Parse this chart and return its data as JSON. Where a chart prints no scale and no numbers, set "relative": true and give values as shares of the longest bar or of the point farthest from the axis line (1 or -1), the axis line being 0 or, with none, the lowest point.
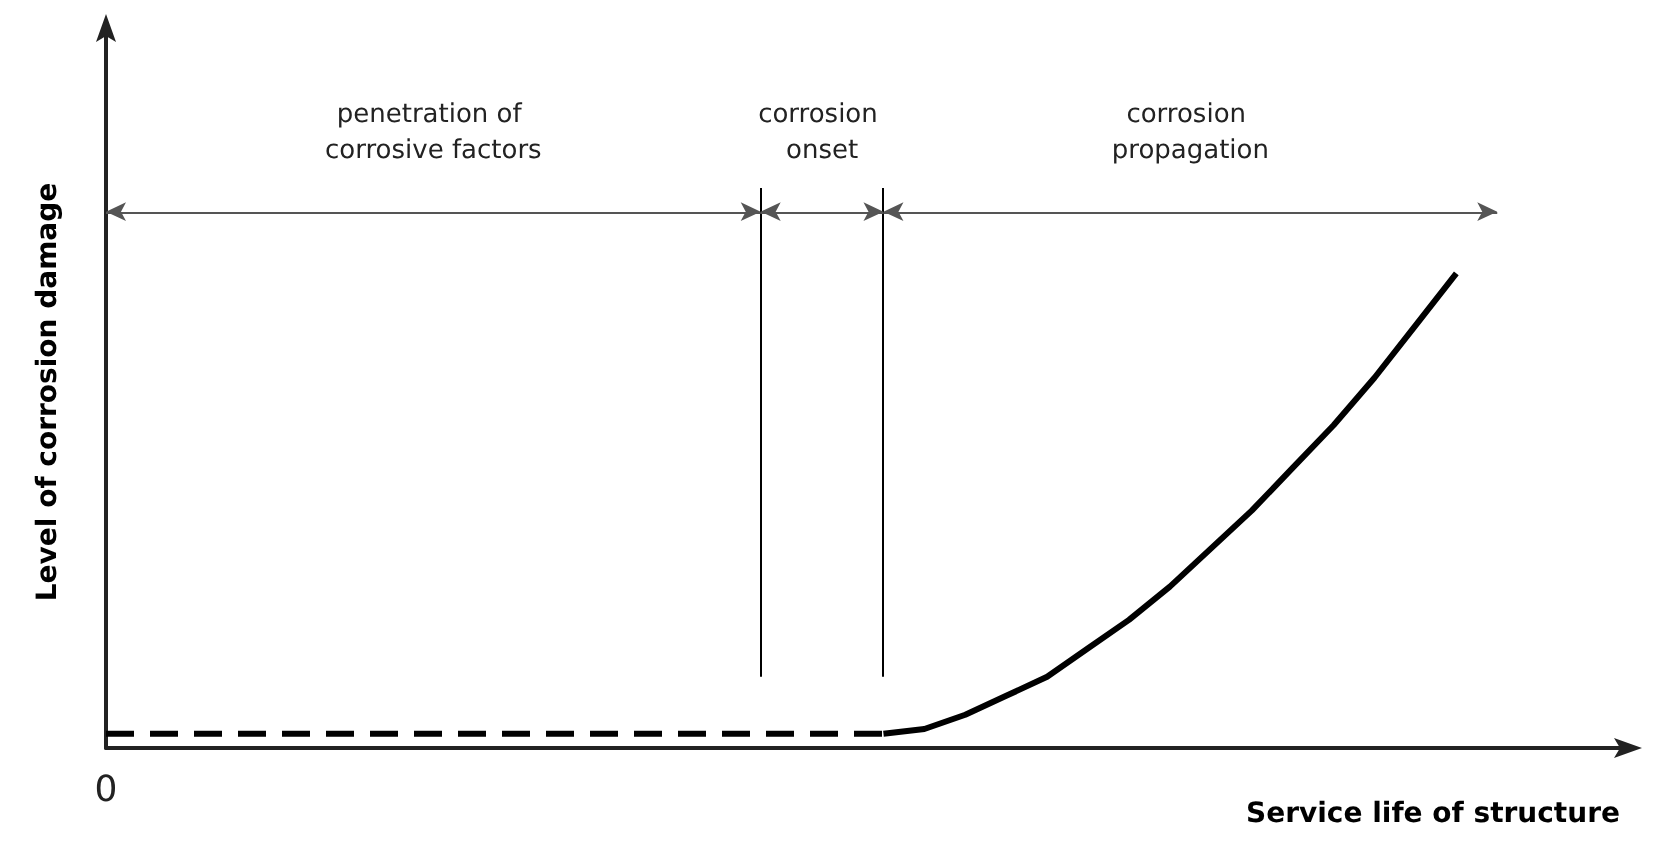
{
  "chart_data": {
    "type": "line",
    "relative": true,
    "xlabel": "Service life of structure",
    "ylabel": "Level of corrosion damage",
    "grid": false,
    "marker": "none",
    "categories": [
      null,
      null,
      null,
      null,
      null,
      null,
      null,
      null,
      null,
      null,
      null,
      null,
      null,
      null,
      null,
      null,
      null,
      null,
      null,
      null,
      null,
      null,
      null,
      null,
      null,
      null,
      null,
      null,
      null,
      null,
      null,
      null,
      null,
      null,
      null,
      null,
      null,
      null
    ],
    "series": [
      {
        "color": "#000000",
        "line_style": "dashed",
        "values": [
          0.03,
          0.03,
          0.03,
          0.03,
          0.03,
          0.03,
          0.03,
          0.03,
          0.03,
          0.03,
          0.03,
          0.03,
          0.03,
          0.03,
          0.03,
          0.03,
          0.03,
          0.03,
          0.03,
          0.03,
          null,
          null,
          null,
          null,
          null,
          null,
          null,
          null,
          null,
          null,
          null,
          null,
          null,
          null,
          null,
          null,
          null,
          null
        ]
      },
      {
        "color": "#000000",
        "line_style": "solid",
        "values": [
          null,
          null,
          null,
          null,
          null,
          null,
          null,
          null,
          null,
          null,
          null,
          null,
          null,
          null,
          null,
          null,
          null,
          null,
          null,
          0.03,
          0.04,
          0.07,
          0.11,
          0.15,
          0.21,
          0.27,
          0.34,
          0.42,
          0.5,
          0.59,
          0.68,
          0.78,
          0.89,
          1,
          null,
          null,
          null,
          null
        ]
      }
    ],
    "annotations": [
      "0",
      "penetration of corrosive factors",
      "corrosion onset",
      "corrosion propagation"
    ]
  }
}
